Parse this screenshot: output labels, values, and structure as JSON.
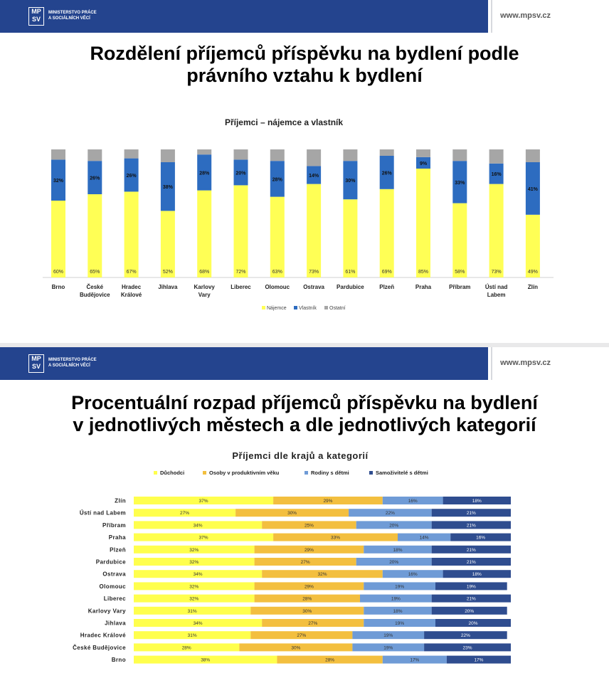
{
  "header": {
    "logo_mark_top": "MP",
    "logo_mark_bottom": "SV",
    "logo_line1": "MINISTERSTVO PRÁCE",
    "logo_line2": "A SOCIÁLNÍCH VĚCÍ",
    "url": "www.mpsv.cz"
  },
  "slide1": {
    "title_line1": "Rozdělení příjemců příspěvku na bydlení podle",
    "title_line2": "právního vztahu k bydlení"
  },
  "slide2": {
    "title_line1": "Procentuální rozpad příjemců příspěvku na bydlení",
    "title_line2": "v jednotlivých městech a dle jednotlivých kategorií"
  },
  "colors": {
    "header_blue": "#24448e",
    "yellow": "#ffff55",
    "blue": "#2d6cc0",
    "gray": "#a6a6a6",
    "gold": "#f3bf3f",
    "light_blue": "#6f9bd6",
    "navy": "#2f4d8f",
    "bright_yellow": "#ffff4d"
  },
  "chart_data": [
    {
      "type": "bar",
      "stacked": true,
      "title": "Příjemci – nájemce a vlastník",
      "categories": [
        [
          "Brno"
        ],
        [
          "České",
          "Budějovice"
        ],
        [
          "Hradec",
          "Králové"
        ],
        [
          "Jihlava"
        ],
        [
          "Karlovy",
          "Vary"
        ],
        [
          "Liberec"
        ],
        [
          "Olomouc"
        ],
        [
          "Ostrava"
        ],
        [
          "Pardubice"
        ],
        [
          "Plzeň"
        ],
        [
          "Praha"
        ],
        [
          "Příbram"
        ],
        [
          "Ústí nad",
          "Labem"
        ],
        [
          "Zlín"
        ]
      ],
      "series": [
        {
          "name": "Nájemce",
          "values": [
            60,
            65,
            67,
            52,
            68,
            72,
            63,
            73,
            61,
            69,
            85,
            58,
            73,
            49
          ],
          "labels": [
            "60%",
            "65%",
            "67%",
            "52%",
            "68%",
            "72%",
            "63%",
            "73%",
            "61%",
            "69%",
            "85%",
            "58%",
            "73%",
            "49%"
          ]
        },
        {
          "name": "Vlastník",
          "values": [
            32,
            26,
            26,
            38,
            28,
            20,
            28,
            14,
            30,
            26,
            9,
            33,
            16,
            41
          ],
          "labels": [
            "32%",
            "26%",
            "26%",
            "38%",
            "28%",
            "20%",
            "28%",
            "14%",
            "30%",
            "26%",
            "9%",
            "33%",
            "16%",
            "41%"
          ]
        },
        {
          "name": "Ostatní",
          "values": [
            8,
            9,
            7,
            10,
            4,
            8,
            9,
            13,
            9,
            5,
            6,
            9,
            11,
            10
          ]
        }
      ],
      "ylim": [
        0,
        100
      ],
      "legend": [
        "Nájemce",
        "Vlastník",
        "Ostatní"
      ],
      "legend_position": "bottom"
    },
    {
      "type": "bar",
      "orientation": "horizontal",
      "stacked": true,
      "title": "Příjemci dle krajů a kategorií",
      "categories": [
        "Zlín",
        "Ústí nad Labem",
        "Příbram",
        "Praha",
        "Plzeň",
        "Pardubice",
        "Ostrava",
        "Olomouc",
        "Liberec",
        "Karlovy Vary",
        "Jihlava",
        "Hradec Králové",
        "České Budějovice",
        "Brno"
      ],
      "series": [
        {
          "name": "Důchodci",
          "values": [
            37,
            27,
            34,
            37,
            32,
            32,
            34,
            32,
            32,
            31,
            34,
            31,
            28,
            38
          ],
          "labels": [
            "37%",
            "27%",
            "34%",
            "37%",
            "32%",
            "32%",
            "34%",
            "32%",
            "32%",
            "31%",
            "34%",
            "31%",
            "28%",
            "38%"
          ]
        },
        {
          "name": "Osoby v produktivním věku",
          "values": [
            29,
            30,
            25,
            33,
            29,
            27,
            32,
            29,
            28,
            30,
            27,
            27,
            30,
            28
          ],
          "labels": [
            "29%",
            "30%",
            "25%",
            "33%",
            "29%",
            "27%",
            "32%",
            "29%",
            "28%",
            "30%",
            "27%",
            "27%",
            "30%",
            "28%"
          ]
        },
        {
          "name": "Rodiny s dětmi",
          "values": [
            16,
            22,
            20,
            14,
            18,
            20,
            16,
            19,
            19,
            18,
            19,
            19,
            19,
            17
          ],
          "labels": [
            "16%",
            "22%",
            "20%",
            "14%",
            "18%",
            "20%",
            "16%",
            "19%",
            "19%",
            "18%",
            "19%",
            "19%",
            "19%",
            "17%"
          ]
        },
        {
          "name": "Samoživitelé s dětmi",
          "values": [
            18,
            21,
            21,
            16,
            21,
            21,
            18,
            19,
            21,
            20,
            20,
            22,
            23,
            17
          ],
          "labels": [
            "18%",
            "21%",
            "21%",
            "16%",
            "21%",
            "21%",
            "18%",
            "19%",
            "21%",
            "20%",
            "20%",
            "22%",
            "23%",
            "17%"
          ]
        }
      ],
      "xlim": [
        0,
        100
      ],
      "legend": [
        "Důchodci",
        "Osoby v produktivním věku",
        "Rodiny s dětmi",
        "Samoživitelé s dětmi"
      ],
      "legend_position": "top"
    }
  ]
}
